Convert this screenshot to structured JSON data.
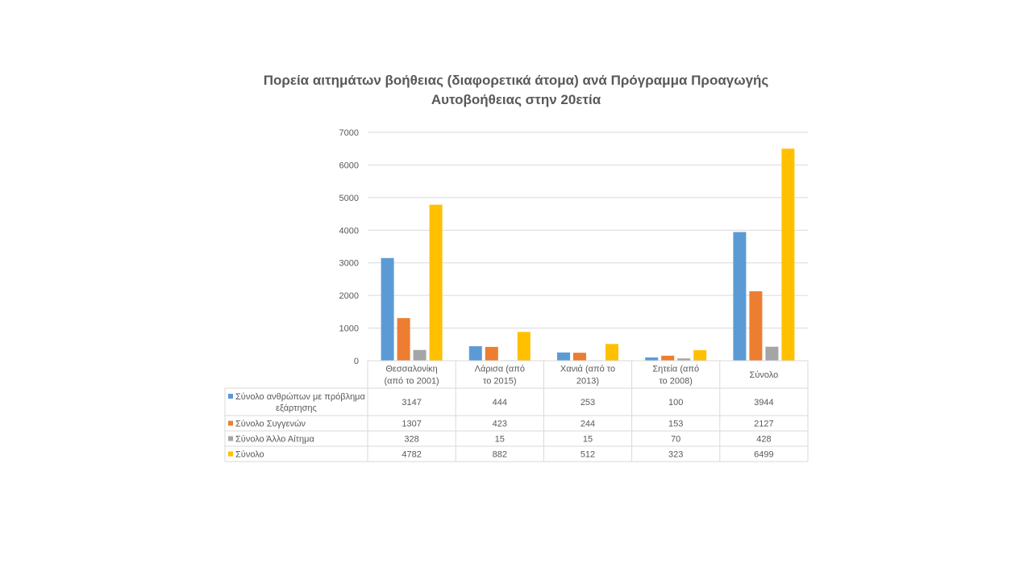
{
  "chart_data": {
    "type": "bar",
    "title_lines": [
      "Πορεία αιτημάτων βοήθειας (διαφορετικά άτομα) ανά Πρόγραμμα Προαγωγής",
      "Αυτοβοήθειας στην 20ετία"
    ],
    "categories": [
      [
        "Θεσσαλονίκη",
        "(από το 2001)"
      ],
      [
        "Λάρισα (από",
        "το 2015)"
      ],
      [
        "Χανιά (από το",
        "2013)"
      ],
      [
        "Σητεία (από",
        "το 2008)"
      ],
      [
        "Σύνολο"
      ]
    ],
    "ylim": [
      0,
      7000
    ],
    "yticks": [
      0,
      1000,
      2000,
      3000,
      4000,
      5000,
      6000,
      7000
    ],
    "grid": true,
    "legend": "data-table",
    "series": [
      {
        "name_lines": [
          "Σύνολο ανθρώπων με πρόβλημα",
          "εξάρτησης"
        ],
        "color": "#5B9BD5",
        "values": [
          3147,
          444,
          253,
          100,
          3944
        ]
      },
      {
        "name_lines": [
          "Σύνολο Συγγενών"
        ],
        "color": "#ED7D31",
        "values": [
          1307,
          423,
          244,
          153,
          2127
        ]
      },
      {
        "name_lines": [
          "Σύνολο Άλλο Αίτημα"
        ],
        "color": "#A5A5A5",
        "values": [
          328,
          15,
          15,
          70,
          428
        ]
      },
      {
        "name_lines": [
          "Σύνολο"
        ],
        "color": "#FFC000",
        "values": [
          4782,
          882,
          512,
          323,
          6499
        ]
      }
    ]
  }
}
